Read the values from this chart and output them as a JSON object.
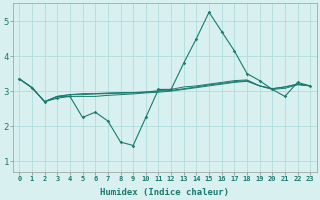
{
  "xlabel": "Humidex (Indice chaleur)",
  "bg_color": "#d8f0f0",
  "grid_color": "#b0dede",
  "line_color": "#1a7a6e",
  "xlim": [
    -0.5,
    23.5
  ],
  "ylim": [
    0.7,
    5.5
  ],
  "xticks": [
    0,
    1,
    2,
    3,
    4,
    5,
    6,
    7,
    8,
    9,
    10,
    11,
    12,
    13,
    14,
    15,
    16,
    17,
    18,
    19,
    20,
    21,
    22,
    23
  ],
  "yticks": [
    1,
    2,
    3,
    4,
    5
  ],
  "series": [
    [
      3.35,
      3.1,
      2.7,
      2.85,
      2.85,
      2.85,
      2.85,
      2.88,
      2.9,
      2.92,
      2.95,
      2.97,
      3.0,
      3.05,
      3.1,
      3.15,
      3.2,
      3.25,
      3.28,
      3.15,
      3.05,
      3.08,
      3.18,
      3.15
    ],
    [
      3.35,
      3.1,
      2.7,
      2.85,
      2.9,
      2.9,
      2.92,
      2.93,
      2.94,
      2.95,
      2.97,
      3.0,
      3.02,
      3.07,
      3.12,
      3.18,
      3.22,
      3.27,
      3.3,
      3.15,
      3.07,
      3.12,
      3.2,
      3.15
    ],
    [
      3.35,
      3.1,
      2.7,
      2.85,
      2.9,
      2.93,
      2.93,
      2.95,
      2.96,
      2.96,
      2.98,
      3.01,
      3.05,
      3.12,
      3.15,
      3.2,
      3.25,
      3.3,
      3.32,
      3.15,
      3.07,
      3.12,
      3.2,
      3.15
    ],
    [
      3.35,
      3.1,
      2.7,
      2.8,
      2.85,
      2.25,
      2.4,
      2.15,
      1.55,
      1.45,
      2.25,
      3.05,
      3.05,
      3.8,
      4.5,
      5.25,
      4.7,
      4.15,
      3.5,
      3.3,
      3.05,
      2.85,
      3.25,
      3.15
    ]
  ]
}
